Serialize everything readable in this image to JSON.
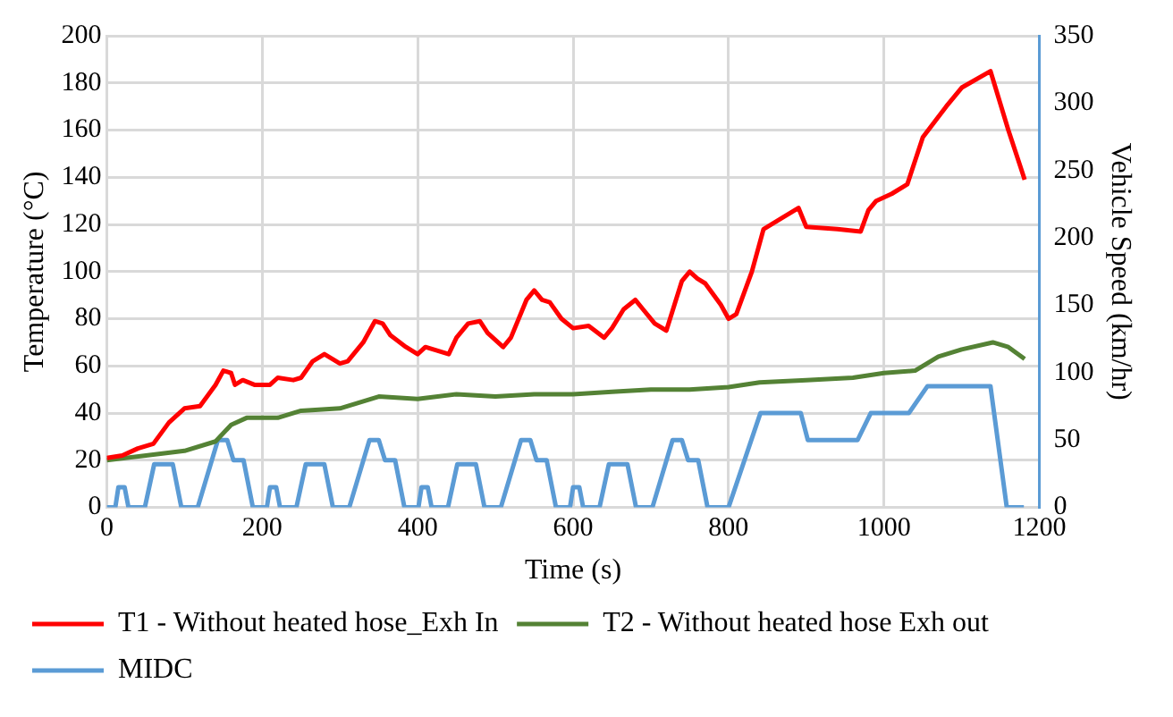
{
  "chart_data": {
    "type": "line",
    "xlabel": "Time (s)",
    "ylabel": "Temperature (°C)",
    "y2label": "Vehicle Speed (km/hr)",
    "xlim": [
      0,
      1200
    ],
    "xticks": [
      0,
      200,
      400,
      600,
      800,
      1000,
      1200
    ],
    "ylim": [
      0,
      200
    ],
    "yticks": [
      0,
      20,
      40,
      60,
      80,
      100,
      120,
      140,
      160,
      180,
      200
    ],
    "y2lim": [
      0,
      350
    ],
    "y2ticks": [
      0,
      50,
      100,
      150,
      200,
      250,
      300,
      350
    ],
    "grid": true,
    "legend": "bottom",
    "marker": "none",
    "line_style": "solid",
    "series": [
      {
        "name": "T1 - Without heated hose_Exh In",
        "color": "#ff0000",
        "x": [
          0,
          20,
          40,
          60,
          80,
          100,
          120,
          140,
          150,
          160,
          165,
          175,
          190,
          210,
          220,
          240,
          250,
          265,
          280,
          300,
          310,
          330,
          345,
          355,
          365,
          385,
          400,
          410,
          440,
          450,
          465,
          480,
          490,
          510,
          520,
          540,
          550,
          560,
          570,
          585,
          600,
          620,
          640,
          650,
          665,
          680,
          690,
          705,
          720,
          740,
          750,
          760,
          770,
          790,
          800,
          810,
          830,
          845,
          870,
          890,
          900,
          940,
          970,
          980,
          990,
          1010,
          1030,
          1050,
          1080,
          1100,
          1137,
          1160,
          1175,
          1181
        ],
        "values": [
          21,
          22,
          25,
          27,
          36,
          42,
          43,
          52,
          58,
          57,
          52,
          54,
          52,
          52,
          55,
          54,
          55,
          62,
          65,
          61,
          62,
          70,
          79,
          78,
          73,
          68,
          65,
          68,
          65,
          72,
          78,
          79,
          74,
          68,
          72,
          88,
          92,
          88,
          87,
          80,
          76,
          77,
          72,
          76,
          84,
          88,
          84,
          78,
          75,
          96,
          100,
          97,
          95,
          86,
          80,
          82,
          100,
          118,
          123,
          127,
          119,
          118,
          117,
          126,
          130,
          133,
          137,
          157,
          170,
          178,
          185,
          160,
          145,
          139
        ]
      },
      {
        "name": "T2 - Without heated hose Exh out",
        "color": "#548235",
        "x": [
          0,
          100,
          140,
          160,
          180,
          220,
          250,
          300,
          350,
          400,
          450,
          500,
          550,
          600,
          650,
          700,
          750,
          800,
          840,
          900,
          960,
          1000,
          1040,
          1070,
          1100,
          1140,
          1160,
          1181
        ],
        "values": [
          20,
          24,
          28,
          35,
          38,
          38,
          41,
          42,
          47,
          46,
          48,
          47,
          48,
          48,
          49,
          50,
          50,
          51,
          53,
          54,
          55,
          57,
          58,
          64,
          67,
          70,
          68,
          63
        ]
      },
      {
        "name": "MIDC",
        "color": "#5b9bd5",
        "axis": "y2",
        "x": [
          0,
          11,
          15,
          23,
          28,
          49,
          61,
          85,
          96,
          117,
          143,
          155,
          163,
          176,
          188,
          195,
          206,
          210,
          218,
          223,
          244,
          256,
          280,
          291,
          312,
          338,
          350,
          358,
          371,
          383,
          390,
          401,
          405,
          413,
          418,
          439,
          451,
          475,
          486,
          507,
          533,
          545,
          553,
          566,
          578,
          585,
          596,
          600,
          608,
          613,
          634,
          646,
          670,
          681,
          702,
          728,
          740,
          748,
          761,
          773,
          800,
          841,
          893,
          902,
          966,
          983,
          1032,
          1056,
          1137,
          1158,
          1180
        ],
        "values": [
          0,
          0,
          15,
          15,
          0,
          0,
          32,
          32,
          0,
          0,
          50,
          50,
          35,
          35,
          0,
          0,
          0,
          15,
          15,
          0,
          0,
          32,
          32,
          0,
          0,
          50,
          50,
          35,
          35,
          0,
          0,
          0,
          15,
          15,
          0,
          0,
          32,
          32,
          0,
          0,
          50,
          50,
          35,
          35,
          0,
          0,
          0,
          15,
          15,
          0,
          0,
          32,
          32,
          0,
          0,
          50,
          50,
          35,
          35,
          0,
          0,
          70,
          70,
          50,
          50,
          70,
          70,
          90,
          90,
          0,
          0
        ]
      }
    ]
  }
}
